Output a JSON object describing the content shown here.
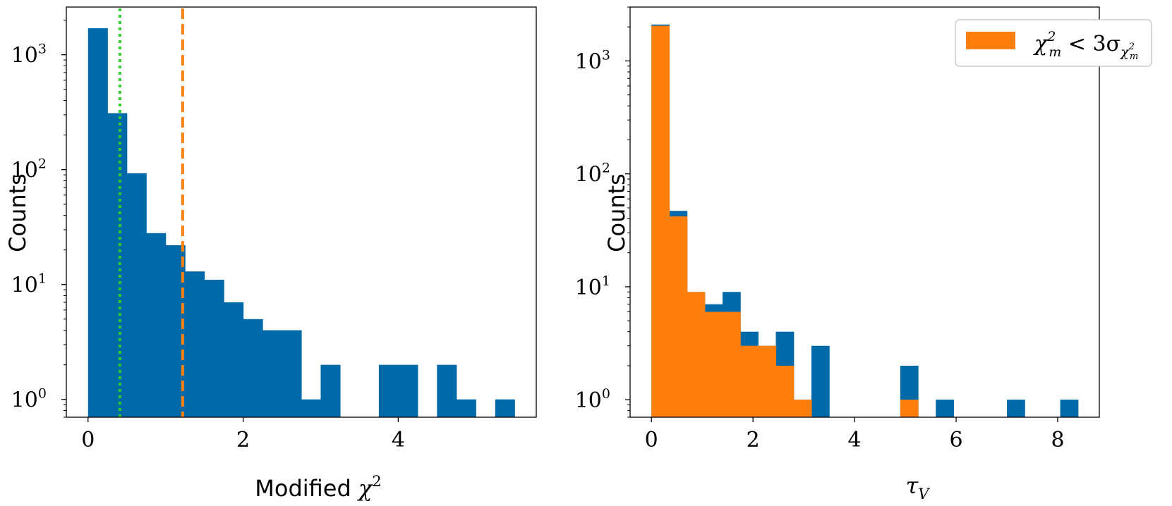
{
  "colors": {
    "blue": "#0069a8",
    "orange": "#ff7f0e",
    "green": "#2ecc2e",
    "axis": "#000000"
  },
  "chart_data": [
    {
      "type": "bar",
      "subtype": "histogram",
      "yscale": "log",
      "xlim": [
        -0.28,
        5.78
      ],
      "ylim": [
        0.7,
        2600
      ],
      "xticks": [
        0,
        2,
        4
      ],
      "yticks": [
        1,
        10,
        100,
        1000
      ],
      "ytick_labels": [
        "10",
        "10",
        "10",
        "10"
      ],
      "ytick_exponents": [
        "0",
        "1",
        "2",
        "3"
      ],
      "ylabel": "Counts",
      "xlabel_text": "Modified ",
      "xlabel_math": "χ",
      "xlabel_sup": "2",
      "bin_width": 0.25,
      "bin_edges_start": 0.0,
      "series": [
        {
          "color": "#0069a8",
          "values": [
            1700,
            310,
            93,
            28,
            22,
            13,
            11,
            7,
            5,
            4,
            4,
            1,
            2,
            0,
            0,
            2,
            2,
            0,
            2,
            1,
            0,
            1
          ]
        }
      ],
      "vlines": [
        {
          "x": 0.41,
          "style": "dotted",
          "color": "#2ecc2e"
        },
        {
          "x": 1.22,
          "style": "dashed",
          "color": "#ff7f0e"
        }
      ],
      "grid": false
    },
    {
      "type": "bar",
      "subtype": "histogram",
      "yscale": "log",
      "xlim": [
        -0.42,
        8.82
      ],
      "ylim": [
        0.7,
        3000
      ],
      "xticks": [
        0,
        2,
        4,
        6,
        8
      ],
      "yticks": [
        1,
        10,
        100,
        1000
      ],
      "ytick_labels": [
        "10",
        "10",
        "10",
        "10"
      ],
      "ytick_exponents": [
        "0",
        "1",
        "2",
        "3"
      ],
      "ylabel": "Counts",
      "xlabel_math": "τ",
      "xlabel_sub": "V",
      "bin_width": 0.35,
      "bin_edges_start": 0.0,
      "series": [
        {
          "color": "#0069a8",
          "values": [
            2100,
            47,
            9,
            7,
            9,
            4,
            3,
            4,
            1,
            3,
            0,
            0,
            0,
            0,
            2,
            0,
            1,
            0,
            0,
            0,
            1,
            0,
            0,
            1
          ]
        },
        {
          "color": "#ff7f0e",
          "values": [
            2050,
            42,
            9,
            6,
            6,
            3,
            3,
            2,
            1,
            0,
            0,
            0,
            0,
            0,
            1,
            0,
            0,
            0,
            0,
            0,
            0,
            0,
            0,
            0
          ]
        }
      ],
      "legend": {
        "position": "top-right",
        "label_main": "χ",
        "label_sup": "2",
        "label_sub": "m",
        "label_op": " < 3σ",
        "label_op_sub": "χ",
        "label_op_sub_sup": "2",
        "label_op_sub_sub": "m"
      },
      "grid": false
    }
  ]
}
